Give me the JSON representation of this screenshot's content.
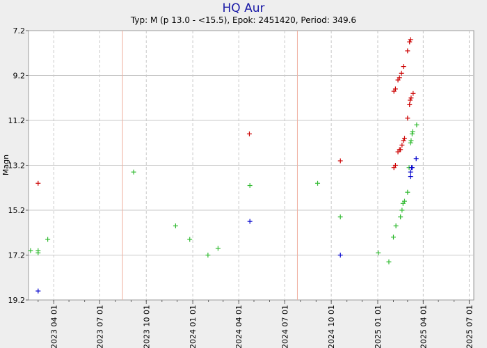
{
  "chart_data": {
    "type": "scatter",
    "title": "HQ Aur",
    "subtitle": "Typ: M (p 13.0 - <15.5), Epok: 2451420, Period: 349.6",
    "ylabel": "Magn",
    "ylim": [
      7.2,
      19.2
    ],
    "y_inverted": true,
    "xlim": [
      "2023-02-10",
      "2025-07-10"
    ],
    "y_ticks": [
      "7.2",
      "9.2",
      "11.2",
      "13.2",
      "15.2",
      "17.2",
      "19.2"
    ],
    "x_ticks": [
      "2023 04 01",
      "2023 07 01",
      "2023 10 01",
      "2024 01 01",
      "2024 04 01",
      "2024 07 01",
      "2024 10 01",
      "2025 01 01",
      "2025 04 01",
      "2025 07 01"
    ],
    "vertical_markers": [
      "2023-08-15",
      "2024-07-26"
    ],
    "colors": {
      "red": "#cc0000",
      "green": "#33bb33",
      "blue": "#0000cc",
      "grid": "#c8c8c8",
      "marker": "#f0b0a0"
    },
    "series": [
      {
        "color": "red",
        "points": [
          [
            "2023-03-01",
            14.0
          ],
          [
            "2024-04-22",
            11.8
          ],
          [
            "2024-10-19",
            13.0
          ],
          [
            "2025-02-02",
            13.3
          ],
          [
            "2025-02-05",
            13.2
          ],
          [
            "2025-02-10",
            12.6
          ],
          [
            "2025-02-13",
            12.5
          ],
          [
            "2025-02-15",
            12.5
          ],
          [
            "2025-02-18",
            12.3
          ],
          [
            "2025-02-21",
            12.1
          ],
          [
            "2025-02-23",
            12.0
          ],
          [
            "2025-03-01",
            11.1
          ],
          [
            "2025-03-05",
            10.5
          ],
          [
            "2025-03-06",
            10.3
          ],
          [
            "2025-03-08",
            10.2
          ],
          [
            "2025-03-12",
            10.0
          ],
          [
            "2025-02-02",
            9.9
          ],
          [
            "2025-02-05",
            9.8
          ],
          [
            "2025-02-10",
            9.4
          ],
          [
            "2025-02-13",
            9.3
          ],
          [
            "2025-02-17",
            9.1
          ],
          [
            "2025-02-21",
            8.8
          ],
          [
            "2025-03-01",
            8.1
          ],
          [
            "2025-03-05",
            7.7
          ],
          [
            "2025-03-07",
            7.6
          ]
        ]
      },
      {
        "color": "green",
        "points": [
          [
            "2023-02-14",
            17.0
          ],
          [
            "2023-03-01",
            17.0
          ],
          [
            "2023-03-01",
            17.1
          ],
          [
            "2023-03-20",
            16.5
          ],
          [
            "2023-09-06",
            13.5
          ],
          [
            "2023-11-28",
            15.9
          ],
          [
            "2023-12-26",
            16.5
          ],
          [
            "2024-01-31",
            17.2
          ],
          [
            "2024-02-20",
            16.9
          ],
          [
            "2024-04-23",
            14.1
          ],
          [
            "2024-09-04",
            14.0
          ],
          [
            "2024-10-19",
            15.5
          ],
          [
            "2025-01-02",
            17.1
          ],
          [
            "2025-01-23",
            17.5
          ],
          [
            "2025-02-01",
            16.4
          ],
          [
            "2025-02-06",
            15.9
          ],
          [
            "2025-02-15",
            15.5
          ],
          [
            "2025-02-18",
            15.2
          ],
          [
            "2025-02-20",
            14.9
          ],
          [
            "2025-02-23",
            14.8
          ],
          [
            "2025-03-01",
            14.4
          ],
          [
            "2025-03-04",
            13.3
          ],
          [
            "2025-03-07",
            12.2
          ],
          [
            "2025-03-08",
            12.1
          ],
          [
            "2025-03-10",
            11.8
          ],
          [
            "2025-03-11",
            11.7
          ],
          [
            "2025-03-19",
            11.4
          ]
        ]
      },
      {
        "color": "blue",
        "points": [
          [
            "2023-03-01",
            18.8
          ],
          [
            "2024-04-23",
            15.7
          ],
          [
            "2024-10-19",
            17.2
          ],
          [
            "2025-03-07",
            13.7
          ],
          [
            "2025-03-07",
            13.5
          ],
          [
            "2025-03-09",
            13.3
          ],
          [
            "2025-03-10",
            13.3
          ],
          [
            "2025-03-18",
            12.9
          ]
        ]
      }
    ]
  }
}
